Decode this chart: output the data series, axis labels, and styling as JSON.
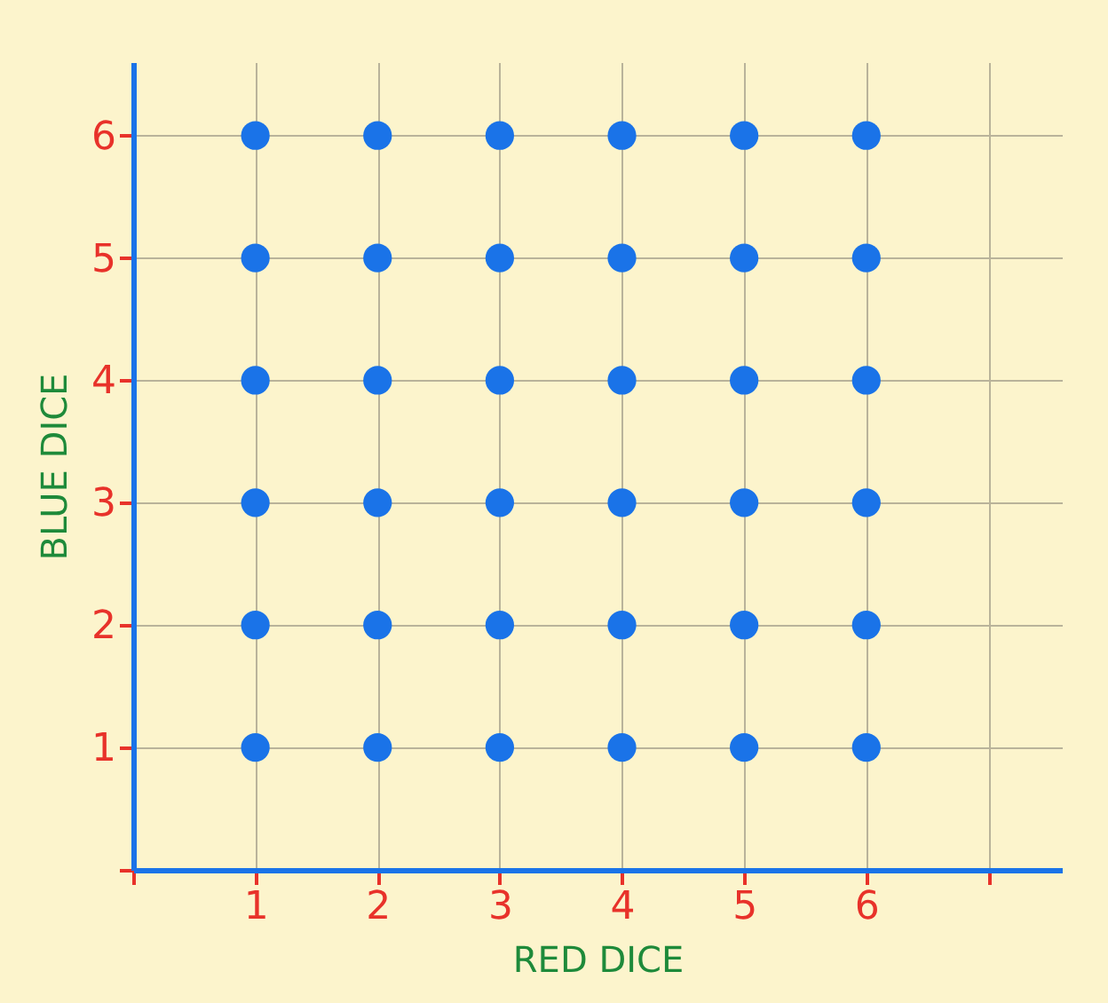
{
  "chart_data": {
    "type": "scatter",
    "xlabel": "RED DICE",
    "ylabel": "BLUE DICE",
    "x": [
      1,
      2,
      3,
      4,
      5,
      6,
      1,
      2,
      3,
      4,
      5,
      6,
      1,
      2,
      3,
      4,
      5,
      6,
      1,
      2,
      3,
      4,
      5,
      6,
      1,
      2,
      3,
      4,
      5,
      6,
      1,
      2,
      3,
      4,
      5,
      6
    ],
    "series": [
      {
        "color": "#1a73e8",
        "values": [
          6,
          6,
          6,
          6,
          6,
          6,
          5,
          5,
          5,
          5,
          5,
          5,
          4,
          4,
          4,
          4,
          4,
          4,
          3,
          3,
          3,
          3,
          3,
          3,
          2,
          2,
          2,
          2,
          2,
          2,
          1,
          1,
          1,
          1,
          1,
          1
        ]
      }
    ],
    "xlim": [
      0,
      7.6
    ],
    "ylim": [
      0,
      6.6
    ],
    "xticks": [
      {
        "value": 0,
        "label": null
      },
      1,
      2,
      3,
      4,
      5,
      6,
      {
        "value": 7,
        "label": null
      }
    ],
    "yticks": [
      {
        "value": 0,
        "label": null
      },
      1,
      2,
      3,
      4,
      5,
      6
    ],
    "grid": true,
    "marker": "circle"
  }
}
